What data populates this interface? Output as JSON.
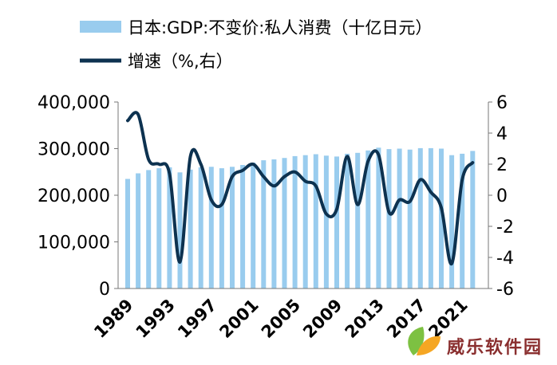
{
  "chart_data": {
    "type": "bar+line",
    "title": "",
    "legend": [
      {
        "label": "日本:GDP:不变价:私人消费（十亿日元）",
        "kind": "bar",
        "color": "#99ccee"
      },
      {
        "label": "增速（%,右）",
        "kind": "line",
        "color": "#0d3250"
      }
    ],
    "legend_position": "top-left",
    "grid": false,
    "x": [
      1989,
      1990,
      1991,
      1992,
      1993,
      1994,
      1995,
      1996,
      1997,
      1998,
      1999,
      2000,
      2001,
      2002,
      2003,
      2004,
      2005,
      2006,
      2007,
      2008,
      2009,
      2010,
      2011,
      2012,
      2013,
      2014,
      2015,
      2016,
      2017,
      2018,
      2019,
      2020,
      2021,
      2022
    ],
    "xticks": [
      "1989",
      "1993",
      "1997",
      "2001",
      "2005",
      "2009",
      "2013",
      "2017",
      "2021"
    ],
    "y_left": {
      "ylim": [
        0,
        400000
      ],
      "ticks": [
        "0",
        "100,000",
        "200,000",
        "300,000",
        "400,000"
      ]
    },
    "y_right": {
      "ylim": [
        -6,
        6
      ],
      "ticks": [
        "-6",
        "-4",
        "-2",
        "0",
        "2",
        "4",
        "6"
      ]
    },
    "series": [
      {
        "name": "日本:GDP:不变价:私人消费（十亿日元）",
        "type": "bar",
        "axis": "left",
        "color": "#99ccee",
        "values": [
          235000,
          247000,
          254000,
          258000,
          260000,
          249000,
          255000,
          260000,
          261000,
          258000,
          261000,
          265000,
          270000,
          275000,
          277000,
          280000,
          284000,
          286000,
          288000,
          285000,
          283000,
          289000,
          291000,
          296000,
          302000,
          299000,
          300000,
          298000,
          301000,
          301000,
          300000,
          286000,
          289000,
          295000
        ]
      },
      {
        "name": "增速（%,右）",
        "type": "line",
        "axis": "right",
        "color": "#0d3250",
        "values": [
          4.8,
          5.2,
          2.3,
          2.0,
          1.4,
          -4.3,
          2.5,
          2.0,
          -0.3,
          -0.6,
          1.2,
          1.6,
          2.0,
          1.2,
          0.6,
          1.2,
          1.5,
          0.9,
          0.6,
          -1.2,
          -0.9,
          2.5,
          -0.6,
          2.2,
          2.6,
          -1.1,
          -0.3,
          -0.4,
          1.0,
          0.2,
          -0.8,
          -4.4,
          1.0,
          2.1
        ]
      }
    ]
  },
  "watermark": {
    "text": "威乐软件园",
    "colors": {
      "text": "#8a2f2f",
      "leaf_green": "#7dc142",
      "leaf_orange": "#f5a623"
    }
  }
}
